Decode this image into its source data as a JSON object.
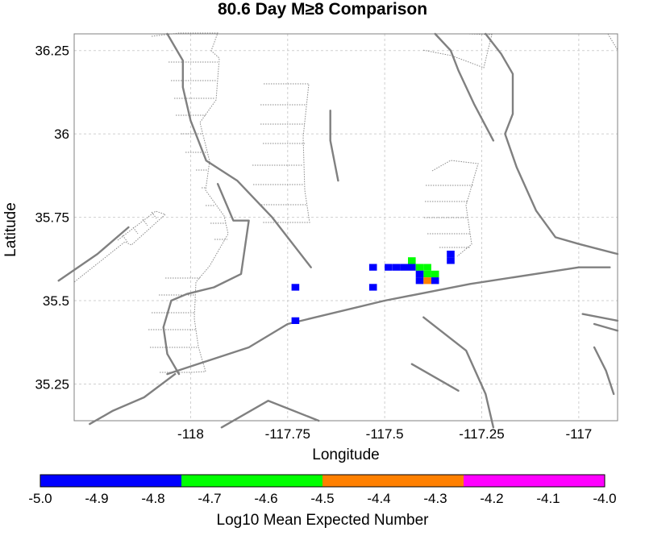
{
  "chart_data": {
    "type": "heatmap",
    "title": "80.6 Day M≥8 Comparison",
    "xlabel": "Longitude",
    "ylabel": "Latitude",
    "xlim": [
      -118.3,
      -116.9
    ],
    "ylim": [
      35.14,
      36.3
    ],
    "xticks": [
      -118,
      -117.75,
      -117.5,
      -117.25,
      -117
    ],
    "xtick_labels": [
      "-118",
      "-117.75",
      "-117.5",
      "-117.25",
      "-117"
    ],
    "yticks": [
      35.25,
      35.5,
      35.75,
      36,
      36.25
    ],
    "ytick_labels": [
      "35.25",
      "35.5",
      "35.75",
      "36",
      "36.25"
    ],
    "grid": true,
    "cell_size": 0.02,
    "cells": [
      {
        "lon": -117.73,
        "lat": 35.54,
        "value": -4.9
      },
      {
        "lon": -117.73,
        "lat": 35.44,
        "value": -4.9
      },
      {
        "lon": -117.53,
        "lat": 35.6,
        "value": -4.9
      },
      {
        "lon": -117.53,
        "lat": 35.54,
        "value": -4.9
      },
      {
        "lon": -117.49,
        "lat": 35.6,
        "value": -4.9
      },
      {
        "lon": -117.47,
        "lat": 35.6,
        "value": -4.9
      },
      {
        "lon": -117.45,
        "lat": 35.6,
        "value": -4.9
      },
      {
        "lon": -117.43,
        "lat": 35.6,
        "value": -4.9
      },
      {
        "lon": -117.43,
        "lat": 35.62,
        "value": -4.65
      },
      {
        "lon": -117.41,
        "lat": 35.6,
        "value": -4.65
      },
      {
        "lon": -117.39,
        "lat": 35.6,
        "value": -4.65
      },
      {
        "lon": -117.39,
        "lat": 35.58,
        "value": -4.65
      },
      {
        "lon": -117.37,
        "lat": 35.58,
        "value": -4.65
      },
      {
        "lon": -117.41,
        "lat": 35.58,
        "value": -4.9
      },
      {
        "lon": -117.41,
        "lat": 35.56,
        "value": -4.9
      },
      {
        "lon": -117.39,
        "lat": 35.56,
        "value": -4.4
      },
      {
        "lon": -117.37,
        "lat": 35.56,
        "value": -4.9
      },
      {
        "lon": -117.33,
        "lat": 35.64,
        "value": -4.9
      },
      {
        "lon": -117.33,
        "lat": 35.62,
        "value": -4.9
      }
    ],
    "colorbar": {
      "label": "Log10 Mean Expected Number",
      "range": [
        -5.0,
        -4.0
      ],
      "tick_values": [
        -5.0,
        -4.9,
        -4.8,
        -4.7,
        -4.6,
        -4.5,
        -4.4,
        -4.3,
        -4.2,
        -4.1,
        -4.0
      ],
      "tick_labels": [
        "-5.0",
        "-4.9",
        "-4.8",
        "-4.7",
        "-4.6",
        "-4.5",
        "-4.4",
        "-4.3",
        "-4.2",
        "-4.1",
        "-4.0"
      ],
      "bins": [
        {
          "from": -5.0,
          "to": -4.75,
          "color": "#0000ff"
        },
        {
          "from": -4.75,
          "to": -4.5,
          "color": "#00ff00"
        },
        {
          "from": -4.5,
          "to": -4.25,
          "color": "#ff8000"
        },
        {
          "from": -4.25,
          "to": -4.0,
          "color": "#ff00ff"
        }
      ]
    },
    "faults": [
      [
        [
          -118.06,
          36.3
        ],
        [
          -118.02,
          36.22
        ],
        [
          -118.02,
          36.14
        ],
        [
          -118.0,
          36.04
        ],
        [
          -117.96,
          35.92
        ],
        [
          -117.88,
          35.86
        ],
        [
          -117.79,
          35.75
        ],
        [
          -117.69,
          35.6
        ]
      ],
      [
        [
          -117.93,
          35.85
        ],
        [
          -117.89,
          35.74
        ],
        [
          -117.85,
          35.74
        ],
        [
          -117.87,
          35.58
        ],
        [
          -117.94,
          35.54
        ],
        [
          -118.01,
          35.52
        ],
        [
          -118.05,
          35.5
        ],
        [
          -118.07,
          35.42
        ],
        [
          -118.06,
          35.34
        ],
        [
          -118.03,
          35.28
        ]
      ],
      [
        [
          -118.06,
          35.28
        ],
        [
          -117.85,
          35.36
        ],
        [
          -117.75,
          35.43
        ],
        [
          -117.5,
          35.5
        ],
        [
          -117.28,
          35.55
        ],
        [
          -117.0,
          35.6
        ],
        [
          -116.92,
          35.6
        ]
      ],
      [
        [
          -118.34,
          35.56
        ],
        [
          -118.24,
          35.64
        ],
        [
          -118.16,
          35.72
        ]
      ],
      [
        [
          -118.26,
          35.13
        ],
        [
          -118.2,
          35.17
        ],
        [
          -118.12,
          35.21
        ],
        [
          -118.04,
          35.28
        ]
      ],
      [
        [
          -117.64,
          36.07
        ],
        [
          -117.64,
          35.98
        ],
        [
          -117.62,
          35.86
        ]
      ],
      [
        [
          -117.37,
          36.3
        ],
        [
          -117.33,
          36.25
        ],
        [
          -117.31,
          36.19
        ],
        [
          -117.27,
          36.09
        ],
        [
          -117.22,
          35.98
        ]
      ],
      [
        [
          -117.24,
          36.3
        ],
        [
          -117.2,
          36.24
        ],
        [
          -117.17,
          36.18
        ],
        [
          -117.17,
          36.06
        ],
        [
          -117.19,
          36.0
        ],
        [
          -117.16,
          35.9
        ],
        [
          -117.11,
          35.77
        ],
        [
          -117.06,
          35.69
        ],
        [
          -117.0,
          35.67
        ],
        [
          -116.9,
          35.64
        ]
      ],
      [
        [
          -117.92,
          35.12
        ],
        [
          -117.8,
          35.2
        ],
        [
          -117.67,
          35.14
        ]
      ],
      [
        [
          -117.43,
          35.31
        ],
        [
          -117.31,
          35.23
        ]
      ],
      [
        [
          -117.4,
          35.45
        ],
        [
          -117.29,
          35.35
        ],
        [
          -117.24,
          35.22
        ],
        [
          -117.22,
          35.12
        ]
      ],
      [
        [
          -116.99,
          35.46
        ],
        [
          -116.9,
          35.44
        ]
      ],
      [
        [
          -116.96,
          35.43
        ],
        [
          -116.9,
          35.41
        ]
      ],
      [
        [
          -116.96,
          35.36
        ],
        [
          -116.93,
          35.29
        ],
        [
          -116.91,
          35.22
        ]
      ]
    ]
  }
}
